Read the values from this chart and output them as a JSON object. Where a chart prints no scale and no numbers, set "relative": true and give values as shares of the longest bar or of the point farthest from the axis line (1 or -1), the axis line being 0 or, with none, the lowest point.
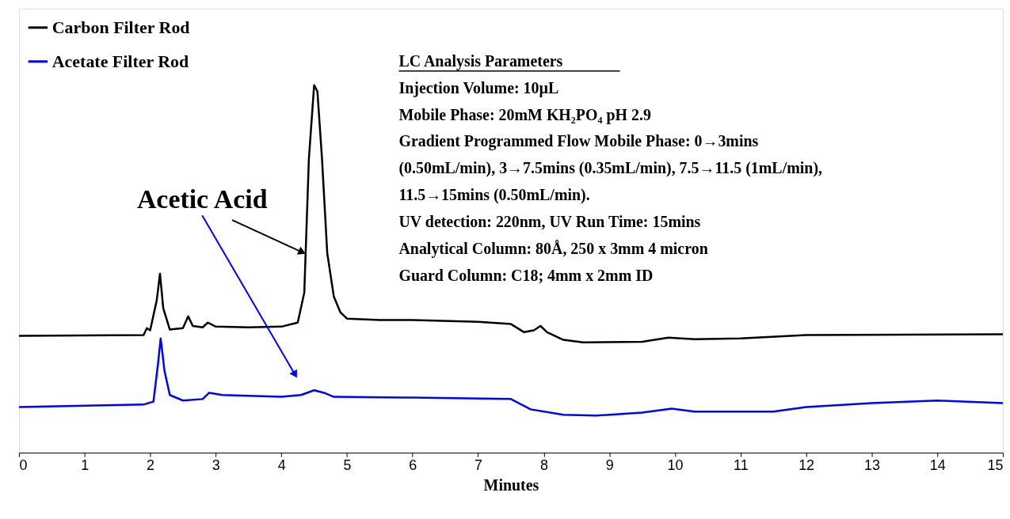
{
  "chart_data": {
    "type": "line",
    "relative": true,
    "xlabel": "Minutes",
    "xlim": [
      0,
      15
    ],
    "xticks": [
      0,
      1,
      2,
      3,
      4,
      5,
      6,
      7,
      8,
      9,
      10,
      11,
      12,
      13,
      14,
      15
    ],
    "grid": false,
    "legend": "top left",
    "marker": "none",
    "line_style": "solid",
    "series": [
      {
        "name": "Carbon Filter Rod",
        "color": "#000000",
        "x": [
          0,
          1.9,
          1.95,
          2.0,
          2.1,
          2.15,
          2.2,
          2.3,
          2.5,
          2.58,
          2.65,
          2.8,
          2.88,
          3.0,
          3.5,
          4.0,
          4.25,
          4.35,
          4.42,
          4.5,
          4.55,
          4.62,
          4.7,
          4.8,
          4.9,
          5.0,
          5.5,
          6.0,
          7.0,
          7.5,
          7.7,
          7.85,
          7.95,
          8.05,
          8.3,
          8.6,
          9.5,
          9.9,
          10.3,
          11.0,
          12.0,
          15.0
        ],
        "values": [
          0.318,
          0.32,
          0.339,
          0.333,
          0.414,
          0.487,
          0.393,
          0.335,
          0.339,
          0.371,
          0.345,
          0.341,
          0.354,
          0.343,
          0.341,
          0.343,
          0.354,
          0.436,
          0.8,
          1.0,
          0.983,
          0.8,
          0.543,
          0.425,
          0.382,
          0.365,
          0.361,
          0.361,
          0.356,
          0.35,
          0.328,
          0.333,
          0.345,
          0.328,
          0.307,
          0.3,
          0.302,
          0.313,
          0.309,
          0.311,
          0.32,
          0.322
        ]
      },
      {
        "name": "Acetate Filter Rod",
        "color": "#0000ff",
        "x": [
          0,
          1.9,
          2.05,
          2.12,
          2.16,
          2.22,
          2.3,
          2.5,
          2.8,
          2.9,
          3.1,
          4.0,
          4.3,
          4.5,
          4.65,
          4.8,
          6.0,
          7.5,
          7.8,
          8.3,
          8.8,
          9.5,
          9.95,
          10.3,
          11.5,
          12.0,
          13.0,
          14.0,
          15.0
        ],
        "values": [
          0.124,
          0.131,
          0.139,
          0.242,
          0.311,
          0.221,
          0.157,
          0.142,
          0.146,
          0.163,
          0.157,
          0.152,
          0.157,
          0.17,
          0.163,
          0.152,
          0.15,
          0.146,
          0.118,
          0.103,
          0.101,
          0.109,
          0.12,
          0.112,
          0.112,
          0.124,
          0.135,
          0.142,
          0.135
        ]
      }
    ],
    "annotations": [
      "LC Analysis Parameters",
      "Injection Volume: 10µL",
      "Mobile Phase: 20mM KH₂PO₄ pH 2.9",
      "Gradient Programmed Flow Mobile Phase: 0→3mins",
      "(0.50mL/min), 3→7.5mins (0.35mL/min), 7.5→11.5 (1mL/min),",
      "11.5→15mins (0.50mL/min).",
      "UV detection: 220nm, UV Run Time: 15mins",
      "Analytical Column: 80Å, 250 x 3mm 4 micron",
      "Guard Column: C18; 4mm x 2mm ID",
      {
        "text": "Acetic Acid",
        "x": 4.3,
        "y": 0.547
      }
    ]
  }
}
